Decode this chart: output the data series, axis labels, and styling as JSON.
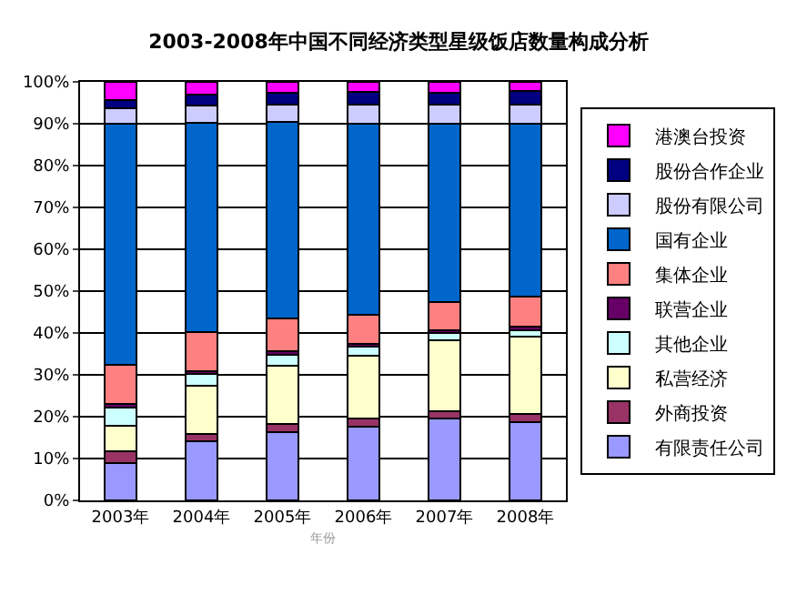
{
  "chart_data": {
    "type": "bar",
    "title": "2003-2008年中国不同经济类型星级饭店数量构成分析",
    "xlabel": "年份",
    "categories": [
      "2003年",
      "2004年",
      "2005年",
      "2006年",
      "2007年",
      "2008年"
    ],
    "stacked": true,
    "ylim": [
      0,
      100
    ],
    "yticks": [
      {
        "value": 0,
        "label": "0%"
      },
      {
        "value": 10,
        "label": "10%"
      },
      {
        "value": 20,
        "label": "20%"
      },
      {
        "value": 30,
        "label": "30%"
      },
      {
        "value": 40,
        "label": "40%"
      },
      {
        "value": 50,
        "label": "50%"
      },
      {
        "value": 60,
        "label": "60%"
      },
      {
        "value": 70,
        "label": "70%"
      },
      {
        "value": 80,
        "label": "80%"
      },
      {
        "value": 90,
        "label": "90%"
      },
      {
        "value": 100,
        "label": "100%"
      }
    ],
    "grid": "y",
    "legend": "right",
    "series": [
      {
        "name": "有限责任公司",
        "color": "#9999ff",
        "values": [
          8.9,
          14.1,
          16.3,
          17.7,
          19.6,
          18.7
        ]
      },
      {
        "name": "外商投资",
        "color": "#993366",
        "values": [
          2.8,
          1.7,
          1.9,
          1.9,
          1.6,
          2.0
        ]
      },
      {
        "name": "私营经济",
        "color": "#ffffcc",
        "values": [
          6.2,
          11.7,
          13.9,
          14.9,
          17.1,
          18.5
        ]
      },
      {
        "name": "其他企业",
        "color": "#ccffff",
        "values": [
          4.3,
          2.7,
          2.7,
          2.2,
          1.6,
          1.5
        ]
      },
      {
        "name": "联营企业",
        "color": "#660066",
        "values": [
          0.9,
          0.7,
          0.8,
          0.8,
          0.8,
          0.9
        ]
      },
      {
        "name": "集体企业",
        "color": "#ff8080",
        "values": [
          9.3,
          9.3,
          7.9,
          6.8,
          6.8,
          7.1
        ]
      },
      {
        "name": "国有企业",
        "color": "#0066cc",
        "values": [
          57.5,
          50.0,
          47.0,
          45.6,
          42.4,
          41.2
        ]
      },
      {
        "name": "股份有限公司",
        "color": "#ccccff",
        "values": [
          3.8,
          4.1,
          4.1,
          4.7,
          4.7,
          4.7
        ]
      },
      {
        "name": "股份合作企业",
        "color": "#000080",
        "values": [
          2.0,
          2.7,
          2.7,
          3.0,
          2.7,
          3.2
        ]
      },
      {
        "name": "港澳台投资",
        "color": "#ff00ff",
        "values": [
          4.3,
          3.0,
          2.7,
          2.4,
          2.7,
          2.2
        ]
      }
    ]
  }
}
